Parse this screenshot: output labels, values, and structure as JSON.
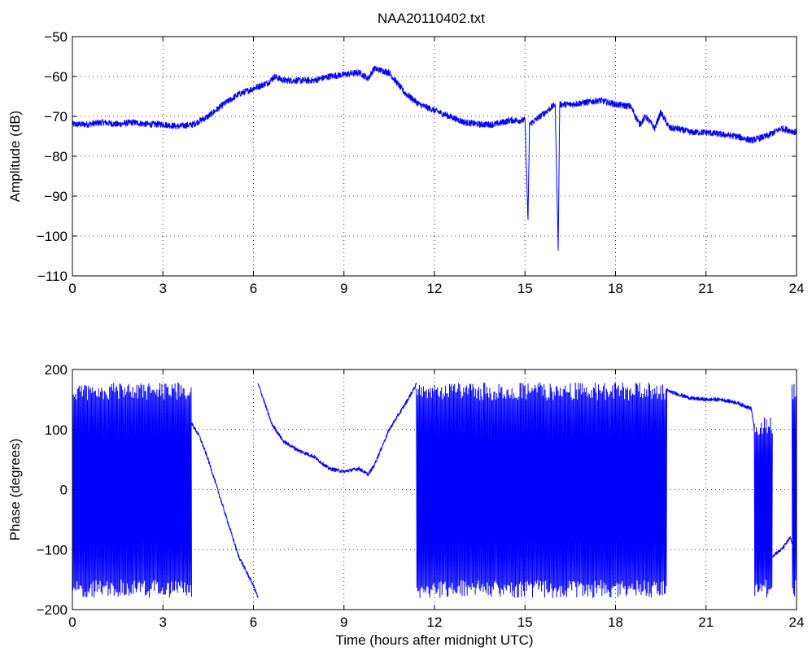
{
  "title": "NAA20110402.txt",
  "colors": {
    "series": "#0000ff",
    "axes": "#000000",
    "background": "#ffffff"
  },
  "chart_data": [
    {
      "type": "line",
      "ylabel": "Amplitude (dB)",
      "xlabel": "",
      "xlim": [
        0,
        24
      ],
      "ylim": [
        -110,
        -50
      ],
      "xticks": [
        0,
        3,
        6,
        9,
        12,
        15,
        18,
        21,
        24
      ],
      "yticks": [
        -110,
        -100,
        -90,
        -80,
        -70,
        -60,
        -50
      ],
      "grid": true,
      "x": [
        0,
        0.5,
        1,
        1.5,
        2,
        2.5,
        3,
        3.5,
        4,
        4.5,
        5,
        5.5,
        6,
        6.5,
        6.7,
        7,
        7.5,
        8,
        8.5,
        9,
        9.5,
        9.8,
        10,
        10.5,
        11,
        11.5,
        12,
        12.5,
        13,
        13.5,
        14,
        14.5,
        15,
        15.1,
        15.15,
        15.5,
        16,
        16.1,
        16.15,
        16.5,
        17,
        17.5,
        18,
        18.5,
        18.8,
        19,
        19.3,
        19.5,
        19.8,
        20,
        20.5,
        21,
        21.5,
        22,
        22.5,
        23,
        23.5,
        24
      ],
      "y": [
        -72,
        -72,
        -71.5,
        -72,
        -71.5,
        -72,
        -72,
        -72.5,
        -72,
        -70,
        -67,
        -64.5,
        -63,
        -61.5,
        -60,
        -61,
        -61,
        -61,
        -60,
        -59.5,
        -59,
        -60.5,
        -58,
        -59,
        -64,
        -67,
        -68.5,
        -70,
        -71.5,
        -72,
        -72,
        -71,
        -71,
        -96,
        -72,
        -70,
        -67,
        -103,
        -67,
        -67,
        -66.5,
        -66,
        -67,
        -67.5,
        -72,
        -70,
        -73,
        -69,
        -73,
        -73,
        -74,
        -74,
        -74.5,
        -75,
        -76,
        -75,
        -73,
        -74
      ],
      "noise": 0.8
    },
    {
      "type": "line",
      "ylabel": "Phase (degrees)",
      "xlabel": "Time (hours after midnight UTC)",
      "xlim": [
        0,
        24
      ],
      "ylim": [
        -200,
        200
      ],
      "xticks": [
        0,
        3,
        6,
        9,
        12,
        15,
        18,
        21,
        24
      ],
      "yticks": [
        -200,
        -100,
        0,
        100,
        200
      ],
      "grid": true,
      "segments": [
        {
          "kind": "wrap",
          "x0": 0,
          "x1": 3.95,
          "ymin": -180,
          "ymax": 178
        },
        {
          "kind": "line",
          "x": [
            3.95,
            4.2,
            4.5,
            5,
            5.5,
            6,
            6.15
          ],
          "y": [
            110,
            90,
            50,
            -30,
            -110,
            -160,
            -180
          ]
        },
        {
          "kind": "line",
          "x": [
            6.15,
            6.2,
            6.6,
            7,
            7.5,
            8,
            8.5,
            9,
            9.5,
            9.8,
            10,
            10.5,
            11,
            11.4
          ],
          "y": [
            175,
            170,
            110,
            80,
            65,
            55,
            35,
            30,
            35,
            25,
            40,
            100,
            140,
            175
          ]
        },
        {
          "kind": "wrap",
          "x0": 11.4,
          "x1": 19.7,
          "ymin": -180,
          "ymax": 178
        },
        {
          "kind": "line",
          "x": [
            19.7,
            20,
            20.5,
            21,
            21.5,
            22,
            22.5,
            22.6
          ],
          "y": [
            165,
            160,
            152,
            150,
            150,
            145,
            135,
            100
          ]
        },
        {
          "kind": "wrap",
          "x0": 22.6,
          "x1": 23.2,
          "ymin": -180,
          "ymax": 120
        },
        {
          "kind": "line",
          "x": [
            23.2,
            23.5,
            23.8,
            23.85
          ],
          "y": [
            -110,
            -100,
            -80,
            -90
          ]
        },
        {
          "kind": "wrap",
          "x0": 23.85,
          "x1": 24,
          "ymin": -180,
          "ymax": 178
        }
      ]
    }
  ]
}
